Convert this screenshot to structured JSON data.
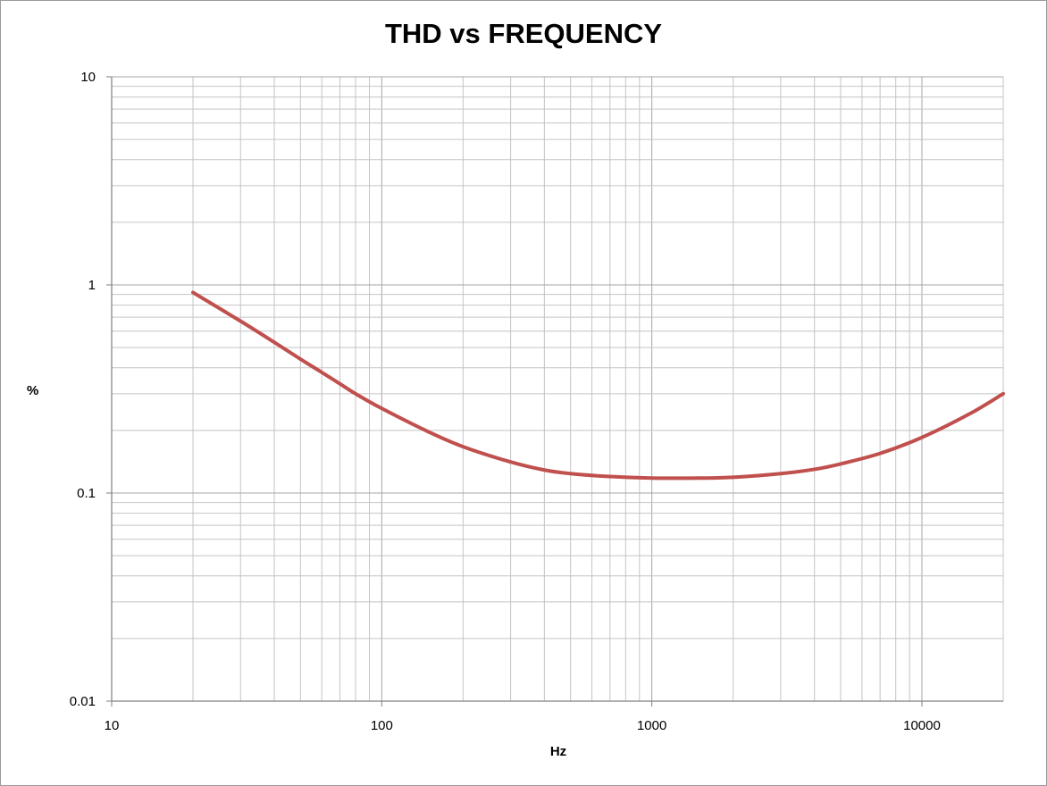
{
  "chart_data": {
    "type": "line",
    "title": "THD vs FREQUENCY",
    "xlabel": "Hz",
    "ylabel": "%",
    "x_scale": "log",
    "y_scale": "log",
    "xlim": [
      10,
      20000
    ],
    "ylim": [
      0.01,
      10
    ],
    "x_ticks": [
      "10",
      "100",
      "1000",
      "10000"
    ],
    "y_ticks": [
      "0.01",
      "0.1",
      "1",
      "10"
    ],
    "grid": true,
    "legend": "none",
    "series": [
      {
        "color": "#C0504D",
        "x": [
          20,
          30,
          40,
          50,
          60,
          70,
          80,
          100,
          150,
          200,
          300,
          400,
          500,
          700,
          1000,
          1500,
          2000,
          3000,
          4000,
          5000,
          7000,
          10000,
          15000,
          20000
        ],
        "y": [
          0.92,
          0.67,
          0.53,
          0.44,
          0.38,
          0.335,
          0.3,
          0.255,
          0.196,
          0.167,
          0.141,
          0.129,
          0.124,
          0.12,
          0.118,
          0.118,
          0.119,
          0.124,
          0.13,
          0.138,
          0.155,
          0.185,
          0.24,
          0.3
        ]
      }
    ]
  }
}
